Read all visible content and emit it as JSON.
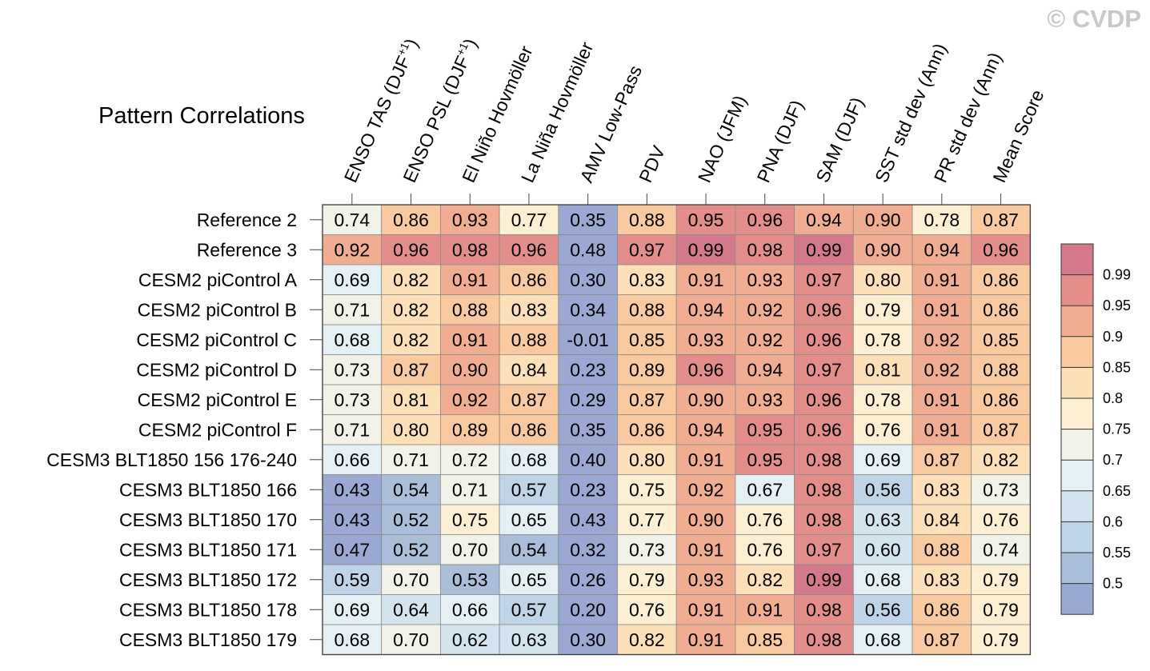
{
  "chart_data": {
    "type": "heatmap",
    "title": "Pattern Correlations",
    "watermark": "© CVDP",
    "columns": [
      "ENSO TAS (DJF+1)",
      "ENSO PSL (DJF+1)",
      "El Niño Hovmöller",
      "La Niña Hovmöller",
      "AMV Low-Pass",
      "PDV",
      "NAO (JFM)",
      "PNA (DJF)",
      "SAM (DJF)",
      "SST std dev (Ann)",
      "PR std dev (Ann)",
      "Mean Score"
    ],
    "rows": [
      "Reference 2",
      "Reference 3",
      "CESM2 piControl A",
      "CESM2 piControl B",
      "CESM2 piControl C",
      "CESM2 piControl D",
      "CESM2 piControl E",
      "CESM2 piControl F",
      "CESM3 BLT1850 156 176-240",
      "CESM3 BLT1850 166",
      "CESM3 BLT1850 170",
      "CESM3 BLT1850 171",
      "CESM3 BLT1850 172",
      "CESM3 BLT1850 178",
      "CESM3 BLT1850 179"
    ],
    "values": [
      [
        "0.74",
        "0.86",
        "0.93",
        "0.77",
        "0.35",
        "0.88",
        "0.95",
        "0.96",
        "0.94",
        "0.90",
        "0.78",
        "0.87"
      ],
      [
        "0.92",
        "0.96",
        "0.98",
        "0.96",
        "0.48",
        "0.97",
        "0.99",
        "0.98",
        "0.99",
        "0.90",
        "0.94",
        "0.96"
      ],
      [
        "0.69",
        "0.82",
        "0.91",
        "0.86",
        "0.30",
        "0.83",
        "0.91",
        "0.93",
        "0.97",
        "0.80",
        "0.91",
        "0.86"
      ],
      [
        "0.71",
        "0.82",
        "0.88",
        "0.83",
        "0.34",
        "0.88",
        "0.94",
        "0.92",
        "0.96",
        "0.79",
        "0.91",
        "0.86"
      ],
      [
        "0.68",
        "0.82",
        "0.91",
        "0.88",
        "-0.01",
        "0.85",
        "0.93",
        "0.92",
        "0.96",
        "0.78",
        "0.92",
        "0.85"
      ],
      [
        "0.73",
        "0.87",
        "0.90",
        "0.84",
        "0.23",
        "0.89",
        "0.96",
        "0.94",
        "0.97",
        "0.81",
        "0.92",
        "0.88"
      ],
      [
        "0.73",
        "0.81",
        "0.92",
        "0.87",
        "0.29",
        "0.87",
        "0.90",
        "0.93",
        "0.96",
        "0.78",
        "0.91",
        "0.86"
      ],
      [
        "0.71",
        "0.80",
        "0.89",
        "0.86",
        "0.35",
        "0.86",
        "0.94",
        "0.95",
        "0.96",
        "0.76",
        "0.91",
        "0.87"
      ],
      [
        "0.66",
        "0.71",
        "0.72",
        "0.68",
        "0.40",
        "0.80",
        "0.91",
        "0.95",
        "0.98",
        "0.69",
        "0.87",
        "0.82"
      ],
      [
        "0.43",
        "0.54",
        "0.71",
        "0.57",
        "0.23",
        "0.75",
        "0.92",
        "0.67",
        "0.98",
        "0.56",
        "0.83",
        "0.73"
      ],
      [
        "0.43",
        "0.52",
        "0.75",
        "0.65",
        "0.43",
        "0.77",
        "0.90",
        "0.76",
        "0.98",
        "0.63",
        "0.84",
        "0.76"
      ],
      [
        "0.47",
        "0.52",
        "0.70",
        "0.54",
        "0.32",
        "0.73",
        "0.91",
        "0.76",
        "0.97",
        "0.60",
        "0.88",
        "0.74"
      ],
      [
        "0.59",
        "0.70",
        "0.53",
        "0.65",
        "0.26",
        "0.79",
        "0.93",
        "0.82",
        "0.99",
        "0.68",
        "0.83",
        "0.79"
      ],
      [
        "0.69",
        "0.64",
        "0.66",
        "0.57",
        "0.20",
        "0.76",
        "0.91",
        "0.91",
        "0.98",
        "0.56",
        "0.86",
        "0.79"
      ],
      [
        "0.68",
        "0.70",
        "0.62",
        "0.63",
        "0.30",
        "0.82",
        "0.91",
        "0.85",
        "0.98",
        "0.68",
        "0.87",
        "0.79"
      ]
    ],
    "colorbar": {
      "levels": [
        0.5,
        0.55,
        0.6,
        0.65,
        0.7,
        0.75,
        0.8,
        0.85,
        0.9,
        0.95,
        0.99
      ],
      "labels": [
        "0.5",
        "0.55",
        "0.6",
        "0.65",
        "0.7",
        "0.75",
        "0.8",
        "0.85",
        "0.9",
        "0.95",
        "0.99"
      ],
      "colors": [
        "#9aa8d2",
        "#aabed9",
        "#bfd4e6",
        "#d3e4ef",
        "#e4f0f4",
        "#f2f2e8",
        "#fdf0d2",
        "#fde0b8",
        "#f9c9a0",
        "#f0ad92",
        "#e48e8c",
        "#d4798a"
      ]
    }
  }
}
